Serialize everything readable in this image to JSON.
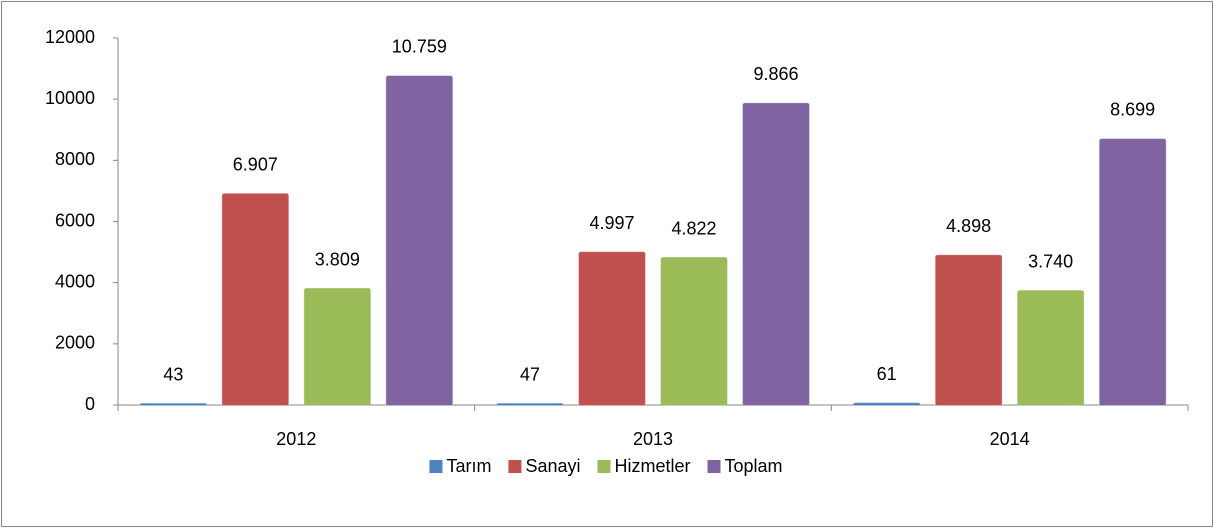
{
  "chart_data": {
    "type": "bar",
    "categories": [
      "2012",
      "2013",
      "2014"
    ],
    "series": [
      {
        "name": "Tarım",
        "color": "#4f81bd",
        "values": [
          43,
          47,
          61
        ],
        "value_labels": [
          "43",
          "47",
          "61"
        ]
      },
      {
        "name": "Sanayi",
        "color": "#c0504d",
        "values": [
          6907,
          4997,
          4898
        ],
        "value_labels": [
          "6.907",
          "4.997",
          "4.898"
        ]
      },
      {
        "name": "Hizmetler",
        "color": "#9bbb59",
        "values": [
          3809,
          4822,
          3740
        ],
        "value_labels": [
          "3.809",
          "4.822",
          "3.740"
        ]
      },
      {
        "name": "Toplam",
        "color": "#8064a2",
        "values": [
          10759,
          9866,
          8699
        ],
        "value_labels": [
          "10.759",
          "9.866",
          "8.699"
        ]
      }
    ],
    "ylim": [
      0,
      12000
    ],
    "yticks": [
      0,
      2000,
      4000,
      6000,
      8000,
      10000,
      12000
    ],
    "legend": "bottom"
  }
}
